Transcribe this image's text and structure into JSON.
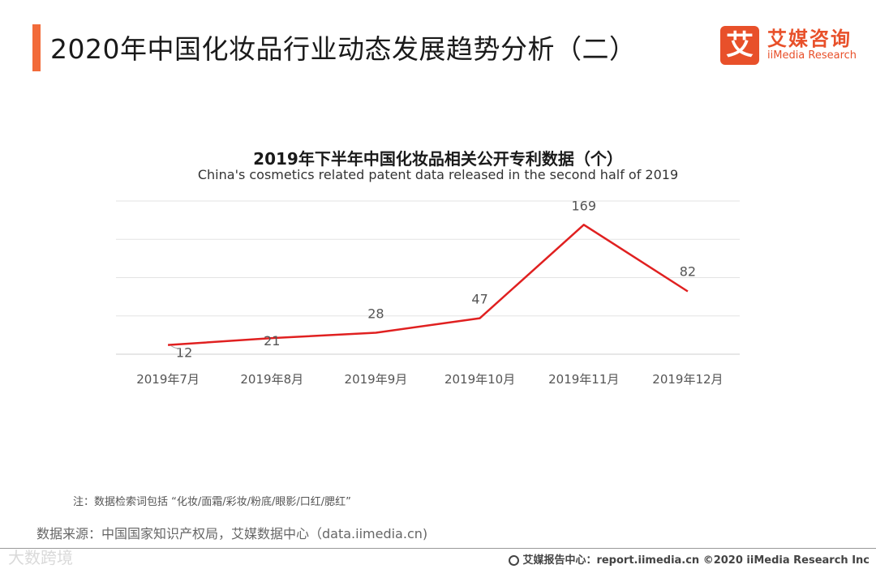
{
  "header": {
    "title": "2020年中国化妆品行业动态发展趋势分析（二）",
    "accent_color": "#f26b3a"
  },
  "logo": {
    "mark": "艾",
    "name_cn": "艾媒咨询",
    "name_en": "iiMedia Research",
    "color": "#e8502a"
  },
  "chart_data": {
    "type": "line",
    "title": "2019年下半年中国化妆品相关公开专利数据（个）",
    "subtitle": "China's cosmetics related patent data released in the second half of 2019",
    "categories": [
      "2019年7月",
      "2019年8月",
      "2019年9月",
      "2019年10月",
      "2019年11月",
      "2019年12月"
    ],
    "values": [
      12,
      21,
      28,
      47,
      169,
      82
    ],
    "data_labels": [
      "12",
      "21",
      "28",
      "47",
      "169",
      "82"
    ],
    "ylim": [
      0,
      200
    ],
    "grid": true,
    "line_color": "#e02020",
    "legend": "none"
  },
  "note": "注：数据检索词包括 “化妆/面霜/彩妆/粉底/眼影/口红/腮红”",
  "source": "数据来源：中国国家知识产权局，艾媒数据中心（data.iimedia.cn)",
  "footer": {
    "watermark": "大数跨境",
    "report_center": "艾媒报告中心：report.iimedia.cn ©2020 iiMedia Research Inc"
  }
}
